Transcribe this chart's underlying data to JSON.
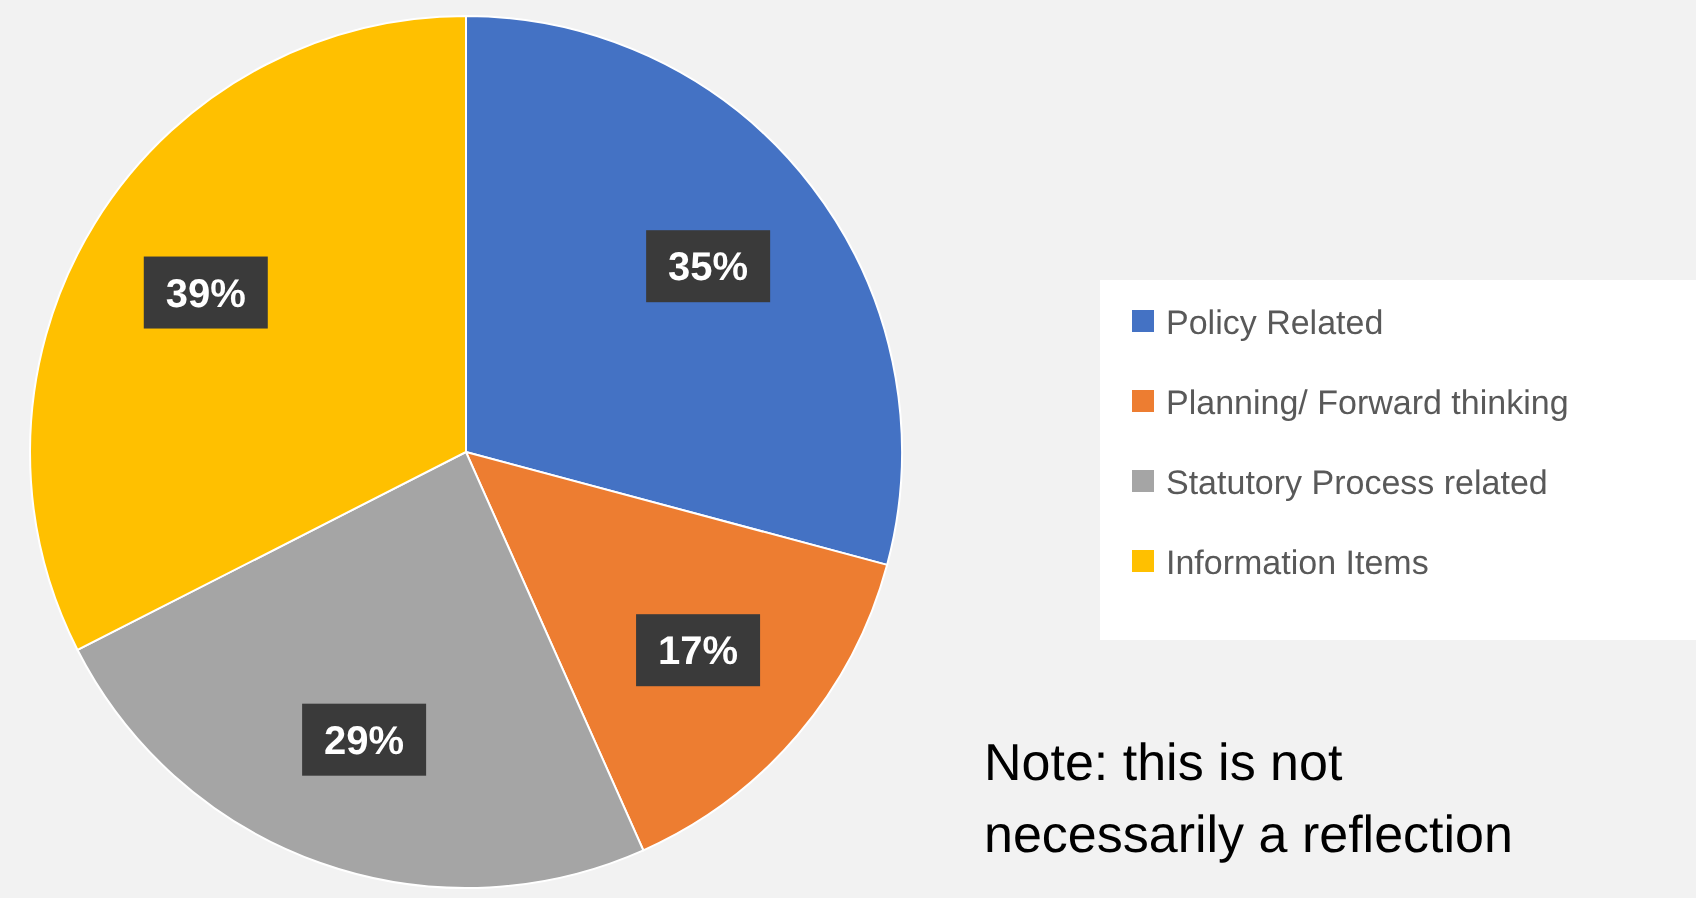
{
  "chart_data": {
    "type": "pie",
    "categories": [
      "Policy Related",
      "Planning/ Forward thinking",
      "Statutory Process related",
      "Information Items"
    ],
    "values": [
      35,
      17,
      29,
      39
    ],
    "colors": [
      "#4472c4",
      "#ed7d31",
      "#a5a5a5",
      "#ffc000"
    ],
    "value_labels": [
      "35%",
      "17%",
      "29%",
      "39%"
    ],
    "legend": "right",
    "annotations": [
      "Note: this is not necessarily a reflection"
    ]
  }
}
